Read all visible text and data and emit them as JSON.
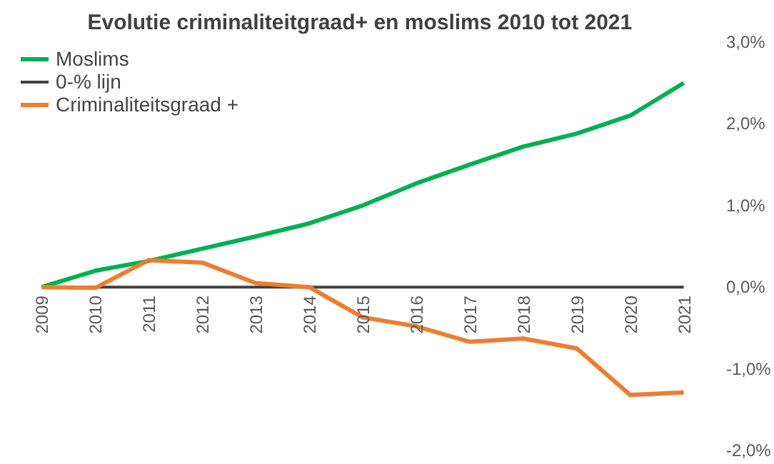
{
  "chart_data": {
    "type": "line",
    "title": "Evolutie criminaliteitgraad+  en moslims 2010 tot 2021",
    "categories": [
      "2009",
      "2010",
      "2011",
      "2012",
      "2013",
      "2014",
      "2015",
      "2016",
      "2017",
      "2018",
      "2019",
      "2020",
      "2021"
    ],
    "series": [
      {
        "name": "Moslims",
        "color": "#00b050",
        "values": [
          0,
          0.2,
          0.32,
          0.47,
          0.62,
          0.78,
          1.0,
          1.27,
          1.5,
          1.72,
          1.88,
          2.1,
          2.5
        ]
      },
      {
        "name": "0-% lijn",
        "color": "#404040",
        "values": [
          0,
          0,
          0,
          0,
          0,
          0,
          0,
          0,
          0,
          0,
          0,
          0,
          0
        ]
      },
      {
        "name": "Criminaliteitsgraad +",
        "color": "#ed7d31",
        "values": [
          0,
          -0.01,
          0.33,
          0.3,
          0.05,
          0.0,
          -0.37,
          -0.48,
          -0.67,
          -0.63,
          -0.75,
          -1.32,
          -1.29
        ]
      }
    ],
    "ylim": [
      -2,
      3
    ],
    "yticks": [
      {
        "value": -2,
        "label": "-2,0%"
      },
      {
        "value": -1,
        "label": "-1,0%"
      },
      {
        "value": 0,
        "label": "0,0%"
      },
      {
        "value": 1,
        "label": "1,0%"
      },
      {
        "value": 2,
        "label": "2,0%"
      },
      {
        "value": 3,
        "label": "3,0%"
      }
    ],
    "grid": false,
    "legend": "top left"
  }
}
